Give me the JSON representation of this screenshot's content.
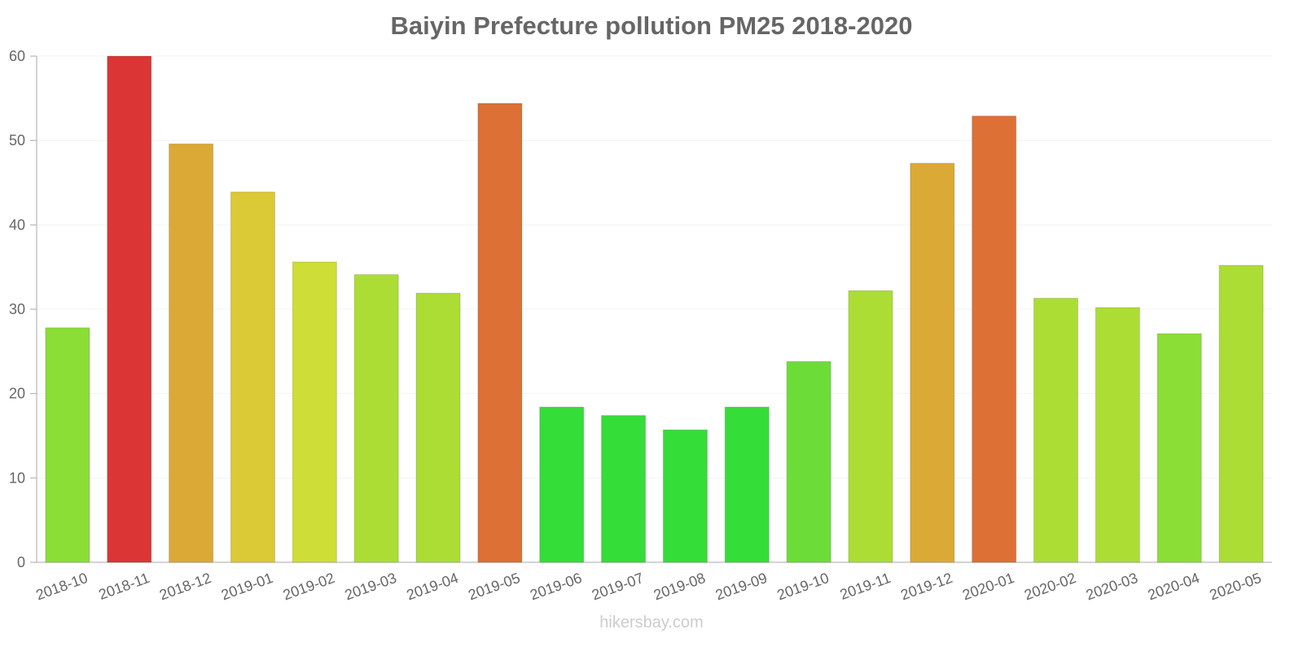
{
  "chart_data": {
    "type": "bar",
    "title": "Baiyin Prefecture pollution PM25 2018-2020",
    "xlabel": "",
    "ylabel": "",
    "ylim": [
      0,
      60
    ],
    "yticks": [
      0,
      10,
      20,
      30,
      40,
      50,
      60
    ],
    "grid": true,
    "categories": [
      "2018-10",
      "2018-11",
      "2018-12",
      "2019-01",
      "2019-02",
      "2019-03",
      "2019-04",
      "2019-05",
      "2019-06",
      "2019-07",
      "2019-08",
      "2019-09",
      "2019-10",
      "2019-11",
      "2019-12",
      "2020-01",
      "2020-02",
      "2020-03",
      "2020-04",
      "2020-05"
    ],
    "values": [
      27.8,
      60,
      49.6,
      43.9,
      35.6,
      34.1,
      31.9,
      54.4,
      18.4,
      17.4,
      15.7,
      18.4,
      23.8,
      32.2,
      47.3,
      52.9,
      31.3,
      30.2,
      27.1,
      35.2
    ],
    "colors": [
      "#8ade36",
      "#db3535",
      "#dba935",
      "#dbc935",
      "#cfdd37",
      "#acdd35",
      "#acdd35",
      "#dd7035",
      "#35dd38",
      "#35dd38",
      "#35dd38",
      "#35dd38",
      "#6cdd38",
      "#acdd35",
      "#dba935",
      "#dd7035",
      "#acdd35",
      "#acdd35",
      "#8ade36",
      "#acdd35"
    ]
  },
  "footer": "hikersbay.com"
}
